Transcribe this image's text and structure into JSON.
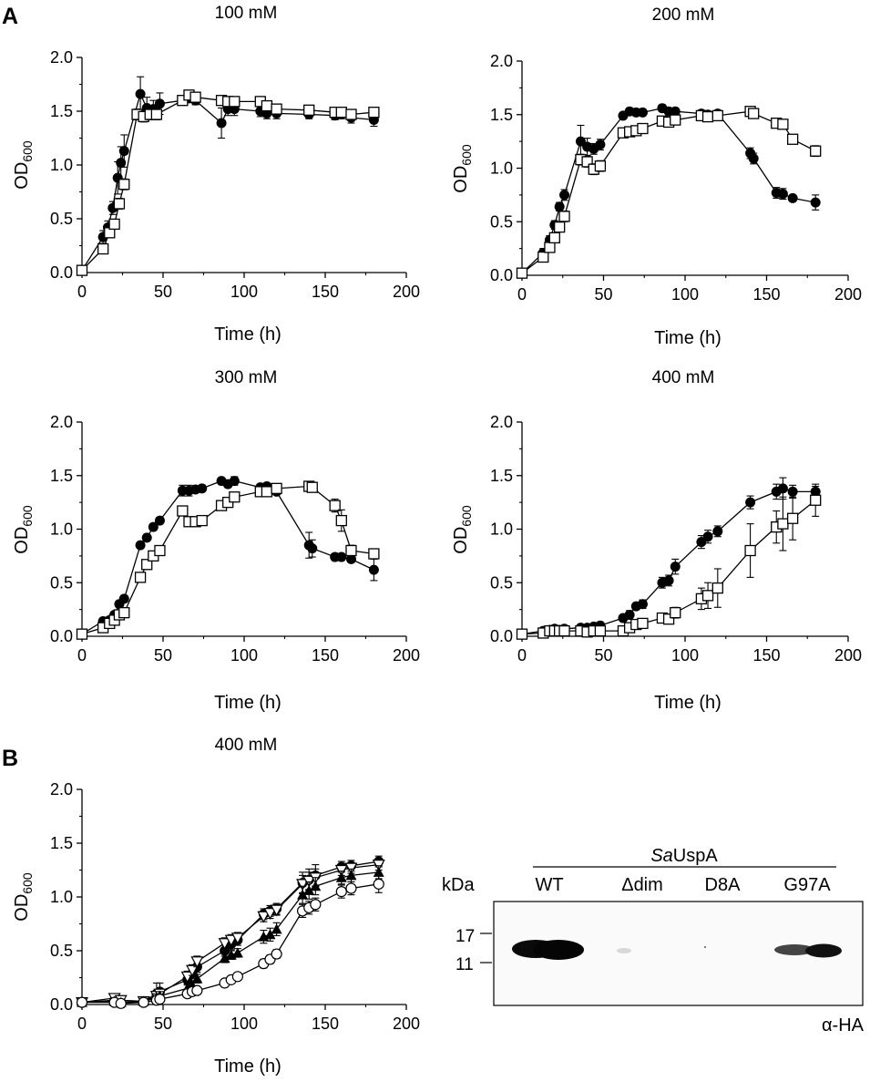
{
  "panel_labels": {
    "a": "A",
    "b": "B"
  },
  "chart_data": [
    {
      "type": "line",
      "title": "100 mM",
      "xlabel": "Time (h)",
      "ylabel": {
        "main": "OD",
        "sub": "600"
      },
      "xlim": [
        0,
        200
      ],
      "ylim": [
        0,
        2.0
      ],
      "xticks": [
        "0",
        "50",
        "100",
        "150",
        "200"
      ],
      "yticks": [
        "0.0",
        "0.5",
        "1.0",
        "1.5",
        "2.0"
      ],
      "series": [
        {
          "name": "filled-circle",
          "marker": "filled-circle",
          "x": [
            0,
            13,
            16,
            19,
            22,
            24,
            26,
            36,
            40,
            44,
            48,
            62,
            66,
            70,
            86,
            90,
            94,
            110,
            114,
            120,
            140,
            156,
            160,
            166,
            180
          ],
          "y": [
            0.02,
            0.33,
            0.42,
            0.6,
            0.88,
            1.02,
            1.13,
            1.66,
            1.53,
            1.52,
            1.57,
            1.6,
            1.62,
            1.6,
            1.39,
            1.52,
            1.52,
            1.5,
            1.48,
            1.48,
            1.47,
            1.46,
            1.47,
            1.44,
            1.42
          ],
          "err": [
            0.02,
            0.06,
            0.06,
            0.06,
            0.15,
            0.15,
            0.15,
            0.16,
            0.1,
            0.08,
            0.1,
            0.04,
            0.04,
            0.04,
            0.14,
            0.06,
            0.06,
            0.05,
            0.05,
            0.05,
            0.04,
            0.04,
            0.04,
            0.05,
            0.06
          ]
        },
        {
          "name": "open-square",
          "marker": "open-square",
          "x": [
            0,
            13,
            17,
            20,
            23,
            26,
            34,
            38,
            42,
            46,
            62,
            66,
            70,
            86,
            90,
            94,
            110,
            114,
            120,
            140,
            156,
            160,
            166,
            180
          ],
          "y": [
            0.02,
            0.22,
            0.37,
            0.45,
            0.64,
            0.82,
            1.47,
            1.45,
            1.47,
            1.47,
            1.6,
            1.65,
            1.63,
            1.6,
            1.59,
            1.59,
            1.59,
            1.55,
            1.52,
            1.51,
            1.49,
            1.49,
            1.47,
            1.49
          ],
          "err": [
            0.02,
            0.04,
            0.04,
            0.04,
            0.05,
            0.05,
            0.05,
            0.05,
            0.05,
            0.05,
            0.04,
            0.04,
            0.04,
            0.03,
            0.03,
            0.03,
            0.04,
            0.04,
            0.04,
            0.03,
            0.03,
            0.03,
            0.03,
            0.04
          ]
        }
      ]
    },
    {
      "type": "line",
      "title": "200 mM",
      "xlabel": "Time (h)",
      "ylabel": {
        "main": "OD",
        "sub": "600"
      },
      "xlim": [
        0,
        200
      ],
      "ylim": [
        0,
        2.0
      ],
      "xticks": [
        "0",
        "50",
        "100",
        "150",
        "200"
      ],
      "yticks": [
        "0.0",
        "0.5",
        "1.0",
        "1.5",
        "2.0"
      ],
      "series": [
        {
          "name": "filled-circle",
          "marker": "filled-circle",
          "x": [
            0,
            13,
            17,
            20,
            23,
            26,
            36,
            40,
            44,
            48,
            62,
            66,
            70,
            74,
            86,
            90,
            94,
            110,
            114,
            120,
            140,
            142,
            156,
            160,
            166,
            180
          ],
          "y": [
            0.02,
            0.21,
            0.33,
            0.47,
            0.64,
            0.75,
            1.25,
            1.2,
            1.18,
            1.22,
            1.49,
            1.53,
            1.52,
            1.52,
            1.56,
            1.53,
            1.53,
            1.51,
            1.5,
            1.51,
            1.14,
            1.09,
            0.77,
            0.76,
            0.72,
            0.68
          ],
          "err": [
            0.02,
            0.04,
            0.04,
            0.04,
            0.04,
            0.05,
            0.15,
            0.08,
            0.05,
            0.05,
            0.03,
            0.03,
            0.03,
            0.03,
            0.03,
            0.03,
            0.03,
            0.03,
            0.03,
            0.03,
            0.05,
            0.05,
            0.05,
            0.05,
            0.03,
            0.07
          ]
        },
        {
          "name": "open-square",
          "marker": "open-square",
          "x": [
            0,
            13,
            17,
            20,
            23,
            26,
            36,
            40,
            44,
            48,
            62,
            66,
            70,
            74,
            86,
            90,
            94,
            110,
            114,
            120,
            140,
            142,
            156,
            160,
            166,
            180
          ],
          "y": [
            0.02,
            0.17,
            0.26,
            0.35,
            0.45,
            0.55,
            1.08,
            1.06,
            0.99,
            1.02,
            1.33,
            1.34,
            1.35,
            1.37,
            1.44,
            1.43,
            1.45,
            1.49,
            1.48,
            1.49,
            1.53,
            1.51,
            1.42,
            1.41,
            1.27,
            1.16
          ],
          "err": [
            0.02,
            0.04,
            0.04,
            0.04,
            0.04,
            0.05,
            0.05,
            0.05,
            0.05,
            0.05,
            0.03,
            0.03,
            0.03,
            0.03,
            0.03,
            0.03,
            0.03,
            0.03,
            0.03,
            0.03,
            0.03,
            0.03,
            0.04,
            0.04,
            0.04,
            0.05
          ]
        }
      ]
    },
    {
      "type": "line",
      "title": "300 mM",
      "xlabel": "Time (h)",
      "ylabel": {
        "main": "OD",
        "sub": "600"
      },
      "xlim": [
        0,
        200
      ],
      "ylim": [
        0,
        2.0
      ],
      "xticks": [
        "0",
        "50",
        "100",
        "150",
        "200"
      ],
      "yticks": [
        "0.0",
        "0.5",
        "1.0",
        "1.5",
        "2.0"
      ],
      "series": [
        {
          "name": "filled-circle",
          "marker": "filled-circle",
          "x": [
            0,
            13,
            17,
            20,
            23,
            26,
            36,
            40,
            44,
            48,
            62,
            66,
            70,
            74,
            86,
            90,
            94,
            110,
            114,
            120,
            140,
            142,
            156,
            160,
            166,
            180
          ],
          "y": [
            0.02,
            0.14,
            0.15,
            0.2,
            0.3,
            0.35,
            0.85,
            0.92,
            1.02,
            1.08,
            1.36,
            1.36,
            1.37,
            1.38,
            1.45,
            1.42,
            1.45,
            1.39,
            1.4,
            1.35,
            0.85,
            0.82,
            0.74,
            0.74,
            0.72,
            0.62
          ],
          "err": [
            0.02,
            0.03,
            0.03,
            0.03,
            0.03,
            0.03,
            0.03,
            0.03,
            0.03,
            0.03,
            0.05,
            0.05,
            0.03,
            0.03,
            0.03,
            0.03,
            0.04,
            0.03,
            0.03,
            0.03,
            0.12,
            0.08,
            0.03,
            0.03,
            0.03,
            0.1
          ]
        },
        {
          "name": "open-square",
          "marker": "open-square",
          "x": [
            0,
            13,
            17,
            20,
            23,
            26,
            36,
            40,
            44,
            48,
            62,
            66,
            70,
            74,
            86,
            90,
            94,
            110,
            114,
            120,
            140,
            142,
            156,
            160,
            166,
            180
          ],
          "y": [
            0.02,
            0.08,
            0.12,
            0.15,
            0.2,
            0.22,
            0.55,
            0.67,
            0.75,
            0.8,
            1.17,
            1.07,
            1.07,
            1.08,
            1.22,
            1.25,
            1.3,
            1.35,
            1.35,
            1.38,
            1.4,
            1.39,
            1.22,
            1.08,
            0.8,
            0.77
          ],
          "err": [
            0.02,
            0.03,
            0.03,
            0.03,
            0.03,
            0.03,
            0.03,
            0.03,
            0.03,
            0.03,
            0.03,
            0.03,
            0.03,
            0.03,
            0.03,
            0.03,
            0.03,
            0.03,
            0.03,
            0.03,
            0.02,
            0.02,
            0.06,
            0.1,
            0.05,
            0.04
          ]
        }
      ]
    },
    {
      "type": "line",
      "title": "400 mM",
      "xlabel": "Time (h)",
      "ylabel": {
        "main": "OD",
        "sub": "600"
      },
      "xlim": [
        0,
        200
      ],
      "ylim": [
        0,
        2.0
      ],
      "xticks": [
        "0",
        "50",
        "100",
        "150",
        "200"
      ],
      "yticks": [
        "0.0",
        "0.5",
        "1.0",
        "1.5",
        "2.0"
      ],
      "series": [
        {
          "name": "filled-circle",
          "marker": "filled-circle",
          "x": [
            0,
            13,
            17,
            20,
            23,
            26,
            36,
            40,
            44,
            48,
            62,
            66,
            70,
            74,
            86,
            90,
            94,
            110,
            114,
            120,
            140,
            156,
            160,
            166,
            180
          ],
          "y": [
            0.02,
            0.05,
            0.06,
            0.07,
            0.06,
            0.07,
            0.08,
            0.08,
            0.09,
            0.1,
            0.17,
            0.2,
            0.28,
            0.3,
            0.5,
            0.52,
            0.65,
            0.88,
            0.93,
            0.98,
            1.25,
            1.35,
            1.38,
            1.35,
            1.35
          ],
          "err": [
            0.02,
            0.02,
            0.02,
            0.02,
            0.02,
            0.02,
            0.02,
            0.02,
            0.02,
            0.02,
            0.03,
            0.04,
            0.03,
            0.04,
            0.05,
            0.05,
            0.07,
            0.06,
            0.06,
            0.05,
            0.06,
            0.07,
            0.1,
            0.06,
            0.05
          ]
        },
        {
          "name": "open-square",
          "marker": "open-square",
          "x": [
            0,
            13,
            17,
            20,
            23,
            26,
            36,
            40,
            44,
            48,
            62,
            66,
            70,
            74,
            86,
            90,
            94,
            110,
            114,
            120,
            140,
            156,
            160,
            166,
            180
          ],
          "y": [
            0.02,
            0.03,
            0.05,
            0.05,
            0.05,
            0.05,
            0.05,
            0.04,
            0.05,
            0.05,
            0.05,
            0.08,
            0.11,
            0.12,
            0.17,
            0.16,
            0.22,
            0.35,
            0.38,
            0.45,
            0.8,
            1.02,
            1.05,
            1.1,
            1.27
          ],
          "err": [
            0.02,
            0.02,
            0.02,
            0.02,
            0.02,
            0.02,
            0.02,
            0.02,
            0.02,
            0.02,
            0.02,
            0.03,
            0.03,
            0.03,
            0.04,
            0.04,
            0.05,
            0.1,
            0.12,
            0.18,
            0.25,
            0.15,
            0.25,
            0.2,
            0.15
          ]
        }
      ]
    },
    {
      "type": "line",
      "title": "400 mM",
      "xlabel": "Time (h)",
      "ylabel": {
        "main": "OD",
        "sub": "600"
      },
      "xlim": [
        0,
        200
      ],
      "ylim": [
        0,
        2.0
      ],
      "xticks": [
        "0",
        "50",
        "100",
        "150",
        "200"
      ],
      "yticks": [
        "0.0",
        "0.5",
        "1.0",
        "1.5",
        "2.0"
      ],
      "series": [
        {
          "name": "filled-circle",
          "marker": "filled-circle",
          "x": [
            0,
            20,
            24,
            38,
            46,
            48,
            65,
            68,
            71,
            88,
            92,
            96,
            112,
            116,
            120,
            136,
            140,
            144,
            160,
            166,
            183
          ],
          "y": [
            0.02,
            0.04,
            0.02,
            0.03,
            0.1,
            0.12,
            0.23,
            0.29,
            0.35,
            0.5,
            0.56,
            0.6,
            0.84,
            0.87,
            0.89,
            1.13,
            1.16,
            1.2,
            1.28,
            1.29,
            1.33
          ],
          "err": [
            0.02,
            0.05,
            0.05,
            0.03,
            0.1,
            0.08,
            0.05,
            0.05,
            0.05,
            0.05,
            0.05,
            0.05,
            0.05,
            0.05,
            0.05,
            0.1,
            0.1,
            0.1,
            0.05,
            0.05,
            0.05
          ]
        },
        {
          "name": "open-triangle-down",
          "marker": "open-triangle-down",
          "x": [
            0,
            20,
            24,
            38,
            46,
            48,
            65,
            68,
            71,
            88,
            92,
            96,
            112,
            116,
            120,
            136,
            140,
            144,
            160,
            166,
            183
          ],
          "y": [
            0.02,
            0.06,
            0.04,
            0.03,
            0.08,
            0.1,
            0.26,
            0.32,
            0.4,
            0.57,
            0.6,
            0.62,
            0.82,
            0.85,
            0.88,
            1.12,
            1.15,
            1.18,
            1.25,
            1.27,
            1.3
          ],
          "err": [
            0.02,
            0.04,
            0.04,
            0.03,
            0.05,
            0.05,
            0.05,
            0.05,
            0.05,
            0.05,
            0.05,
            0.05,
            0.05,
            0.05,
            0.05,
            0.08,
            0.08,
            0.08,
            0.05,
            0.05,
            0.05
          ]
        },
        {
          "name": "filled-triangle-up",
          "marker": "filled-triangle-up",
          "x": [
            0,
            20,
            24,
            38,
            46,
            48,
            65,
            68,
            71,
            88,
            92,
            96,
            112,
            116,
            120,
            136,
            140,
            144,
            160,
            166,
            183
          ],
          "y": [
            0.02,
            0.03,
            0.02,
            0.03,
            0.06,
            0.08,
            0.15,
            0.18,
            0.24,
            0.43,
            0.46,
            0.48,
            0.63,
            0.65,
            0.7,
            1.02,
            1.06,
            1.1,
            1.18,
            1.2,
            1.23
          ],
          "err": [
            0.02,
            0.03,
            0.03,
            0.03,
            0.04,
            0.04,
            0.04,
            0.04,
            0.04,
            0.04,
            0.04,
            0.04,
            0.06,
            0.06,
            0.06,
            0.08,
            0.08,
            0.08,
            0.06,
            0.06,
            0.06
          ]
        },
        {
          "name": "open-circle",
          "marker": "open-circle",
          "x": [
            0,
            20,
            24,
            38,
            46,
            48,
            65,
            68,
            71,
            88,
            92,
            96,
            112,
            116,
            120,
            136,
            140,
            144,
            160,
            166,
            183
          ],
          "y": [
            0.02,
            0.02,
            0.01,
            0.02,
            0.04,
            0.05,
            0.1,
            0.12,
            0.13,
            0.2,
            0.23,
            0.26,
            0.38,
            0.42,
            0.47,
            0.87,
            0.9,
            0.93,
            1.05,
            1.08,
            1.12
          ],
          "err": [
            0.02,
            0.03,
            0.03,
            0.03,
            0.03,
            0.03,
            0.03,
            0.03,
            0.03,
            0.03,
            0.03,
            0.03,
            0.04,
            0.04,
            0.04,
            0.06,
            0.06,
            0.06,
            0.06,
            0.06,
            0.08
          ]
        }
      ]
    }
  ],
  "blot": {
    "group_label_italic": "Sa",
    "group_label_rest": "UspA",
    "kda_label": "kDa",
    "lanes": [
      "WT",
      "Δdim",
      "D8A",
      "G97A"
    ],
    "markers": [
      "17",
      "11"
    ],
    "antibody": "α-HA"
  }
}
